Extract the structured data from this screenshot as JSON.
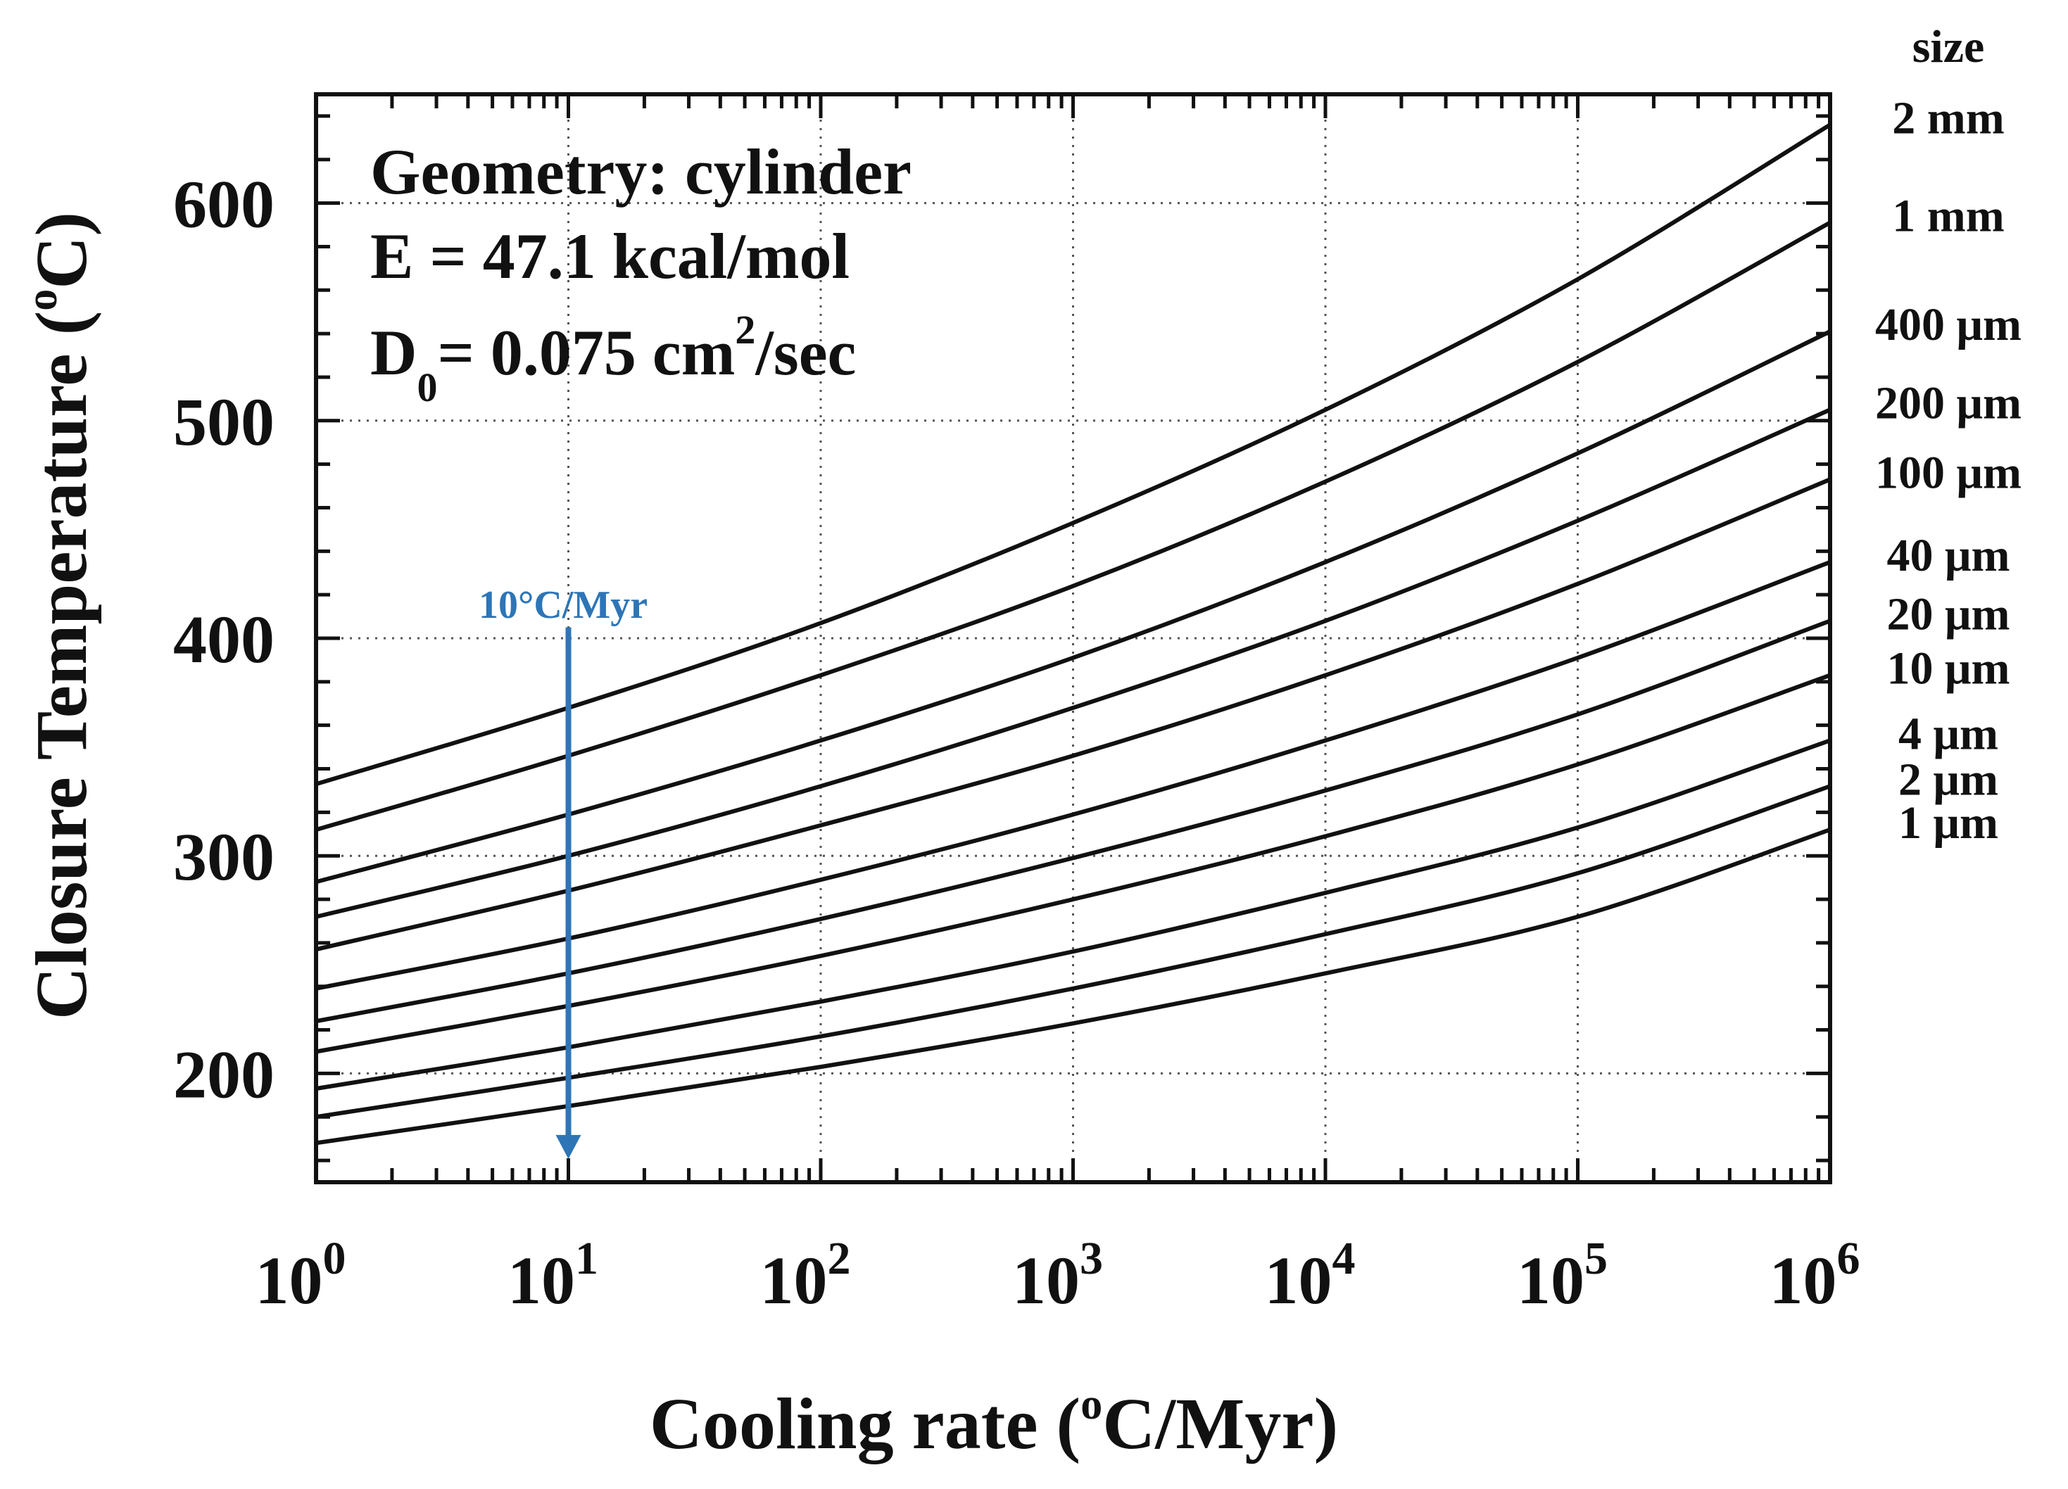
{
  "chart_data": {
    "type": "line",
    "x_scale": "log",
    "xlim": [
      1,
      1000000
    ],
    "ylim": [
      150,
      650
    ],
    "x": [
      1,
      10,
      100,
      1000,
      10000,
      100000,
      1000000
    ],
    "xticks": [
      {
        "base": "10",
        "exp": "0"
      },
      {
        "base": "10",
        "exp": "1"
      },
      {
        "base": "10",
        "exp": "2"
      },
      {
        "base": "10",
        "exp": "3"
      },
      {
        "base": "10",
        "exp": "4"
      },
      {
        "base": "10",
        "exp": "5"
      },
      {
        "base": "10",
        "exp": "6"
      }
    ],
    "yticks": [
      200,
      300,
      400,
      500,
      600
    ],
    "yticks_text": [
      "200",
      "300",
      "400",
      "500",
      "600"
    ],
    "grid": true,
    "xlabel": {
      "pre": "Cooling rate (",
      "sup": "o",
      "post": "C/Myr)"
    },
    "ylabel": {
      "pre": "Closure Temperature (",
      "sup": "o",
      "post": "C)"
    },
    "annotations": {
      "geometry": "Geometry: cylinder",
      "energy": "E  = 47.1 kcal/mol",
      "d0": {
        "D": "D",
        "sub": "0",
        "mid": "= 0.075 cm",
        "sup": "2",
        "end": "/sec"
      }
    },
    "legend_title": "size",
    "legend_position": "right",
    "series": [
      {
        "name": "2 mm",
        "values": [
          333,
          368,
          407,
          453,
          505,
          565,
          636
        ]
      },
      {
        "name": "1 mm",
        "values": [
          312,
          346,
          383,
          424,
          472,
          527,
          591
        ]
      },
      {
        "name": "400 μm",
        "values": [
          288,
          319,
          353,
          391,
          435,
          485,
          541
        ]
      },
      {
        "name": "200 μm",
        "values": [
          272,
          300,
          332,
          368,
          408,
          454,
          505
        ]
      },
      {
        "name": "100 μm",
        "values": [
          257,
          284,
          314,
          346,
          383,
          425,
          473
        ]
      },
      {
        "name": "40 μm",
        "values": [
          239,
          262,
          289,
          319,
          353,
          391,
          435
        ]
      },
      {
        "name": "20 μm",
        "values": [
          224,
          246,
          271,
          299,
          330,
          365,
          408
        ]
      },
      {
        "name": "10 μm",
        "values": [
          210,
          231,
          254,
          280,
          309,
          342,
          383
        ]
      },
      {
        "name": "4 μm",
        "values": [
          193,
          212,
          233,
          256,
          283,
          313,
          353
        ]
      },
      {
        "name": "2 μm",
        "values": [
          180,
          198,
          217,
          239,
          264,
          292,
          332
        ]
      },
      {
        "name": "1 μm",
        "values": [
          168,
          185,
          203,
          223,
          246,
          272,
          312
        ]
      }
    ],
    "marker": {
      "label": "10°C/Myr",
      "x": 10,
      "y_from": 405,
      "y_to": 162,
      "color": "#2e75b6"
    }
  }
}
